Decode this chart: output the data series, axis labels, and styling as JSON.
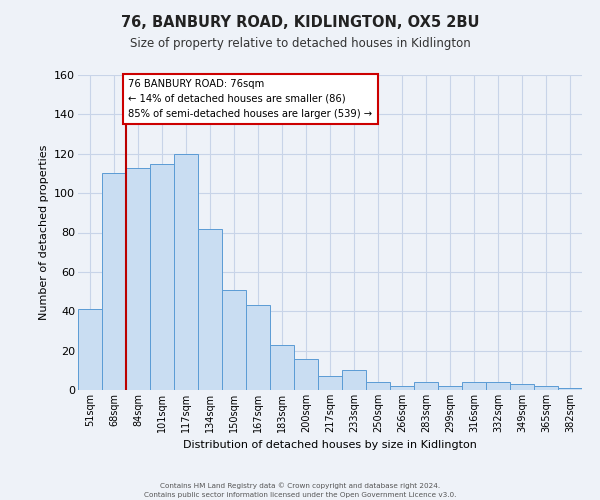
{
  "title": "76, BANBURY ROAD, KIDLINGTON, OX5 2BU",
  "subtitle": "Size of property relative to detached houses in Kidlington",
  "xlabel": "Distribution of detached houses by size in Kidlington",
  "ylabel": "Number of detached properties",
  "bar_labels": [
    "51sqm",
    "68sqm",
    "84sqm",
    "101sqm",
    "117sqm",
    "134sqm",
    "150sqm",
    "167sqm",
    "183sqm",
    "200sqm",
    "217sqm",
    "233sqm",
    "250sqm",
    "266sqm",
    "283sqm",
    "299sqm",
    "316sqm",
    "332sqm",
    "349sqm",
    "365sqm",
    "382sqm"
  ],
  "bar_values": [
    41,
    110,
    113,
    115,
    120,
    82,
    51,
    43,
    23,
    16,
    7,
    10,
    4,
    2,
    4,
    2,
    4,
    4,
    3,
    2,
    1
  ],
  "bar_color": "#c9ddf2",
  "bar_edge_color": "#5b9bd5",
  "ylim": [
    0,
    160
  ],
  "yticks": [
    0,
    20,
    40,
    60,
    80,
    100,
    120,
    140,
    160
  ],
  "red_line_x": 1.5,
  "property_line_color": "#bb0000",
  "annotation_title": "76 BANBURY ROAD: 76sqm",
  "annotation_line1": "← 14% of detached houses are smaller (86)",
  "annotation_line2": "85% of semi-detached houses are larger (539) →",
  "annotation_box_color": "#ffffff",
  "annotation_box_edge_color": "#cc0000",
  "footer_line1": "Contains HM Land Registry data © Crown copyright and database right 2024.",
  "footer_line2": "Contains public sector information licensed under the Open Government Licence v3.0.",
  "grid_color": "#c8d4e8",
  "bg_color": "#eef2f8"
}
